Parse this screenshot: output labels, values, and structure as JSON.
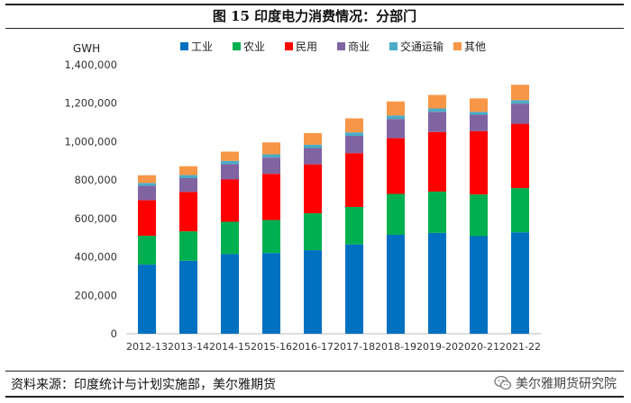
{
  "title": "图 15  印度电力消费情况：分部门",
  "source": "资料来源：印度统计与计划实施部，美尔雅期货",
  "watermark": "美尔雅期货研究院",
  "chart_data": {
    "type": "bar",
    "stacked": true,
    "unit_label": "GWH",
    "ylim": [
      0,
      1400000
    ],
    "yticks": [
      0,
      200000,
      400000,
      600000,
      800000,
      1000000,
      1200000,
      1400000
    ],
    "ytick_labels": [
      "0",
      "200,000",
      "400,000",
      "600,000",
      "800,000",
      "1,000,000",
      "1,200,000",
      "1,400,000"
    ],
    "categories": [
      "2012-13",
      "2013-14",
      "2014-15",
      "2015-16",
      "2016-17",
      "2017-18",
      "2018-19",
      "2019-20",
      "2020-21",
      "2021-22"
    ],
    "legend_position": "top",
    "series": [
      {
        "name": "工业",
        "color": "#0070C0",
        "values": [
          360000,
          380000,
          415000,
          420000,
          435000,
          465000,
          515000,
          525000,
          508000,
          528000
        ]
      },
      {
        "name": "农业",
        "color": "#00B050",
        "values": [
          150000,
          153000,
          168000,
          172000,
          192000,
          195000,
          213000,
          215000,
          217000,
          230000
        ]
      },
      {
        "name": "民用",
        "color": "#FF0000",
        "values": [
          185000,
          205000,
          220000,
          240000,
          255000,
          280000,
          290000,
          310000,
          330000,
          335000
        ]
      },
      {
        "name": "商业",
        "color": "#8064A2",
        "values": [
          75000,
          72000,
          80000,
          85000,
          85000,
          90000,
          100000,
          105000,
          85000,
          105000
        ]
      },
      {
        "name": "交通运输",
        "color": "#4BACC6",
        "values": [
          15000,
          16000,
          17000,
          17000,
          17000,
          18000,
          18000,
          18000,
          15000,
          18000
        ]
      },
      {
        "name": "其他",
        "color": "#F79646",
        "values": [
          40000,
          46000,
          48000,
          62000,
          60000,
          73000,
          73000,
          70000,
          70000,
          80000
        ]
      }
    ]
  }
}
